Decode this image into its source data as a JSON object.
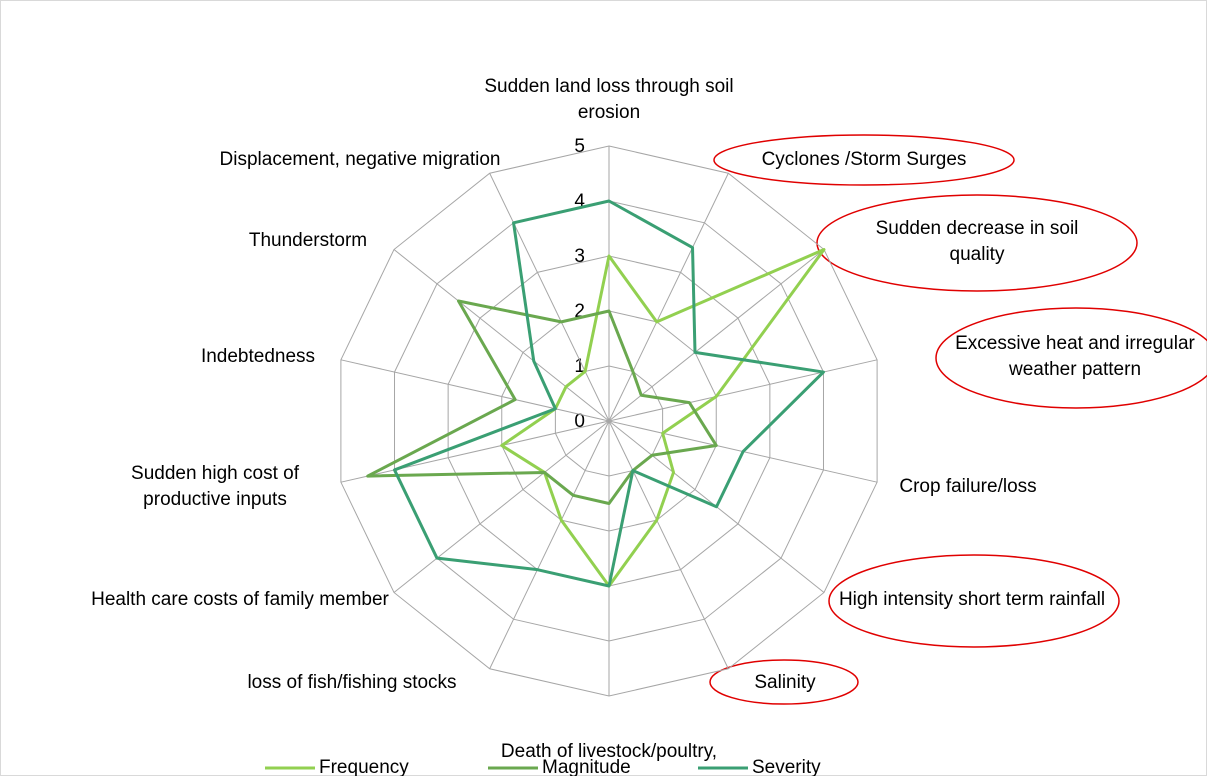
{
  "chart_data": {
    "type": "radar",
    "categories": [
      "Sudden land loss through soil erosion",
      "Cyclones /Storm Surges",
      "Sudden decrease in soil quality",
      "Excessive heat and irregular weather pattern",
      "Crop failure/loss",
      "High intensity short term rainfall",
      "Salinity",
      "Death of livestock/poultry,",
      "loss of fish/fishing stocks",
      "Health care costs of family member",
      "Sudden high cost of productive inputs",
      "Indebtedness",
      "Thunderstorm",
      "Displacement, negative migration"
    ],
    "series": [
      {
        "name": "Frequency",
        "color": "#92d050",
        "values": [
          3,
          2,
          5,
          2,
          1,
          1.5,
          2,
          3,
          2,
          1.5,
          2,
          1,
          1,
          1
        ]
      },
      {
        "name": "Magnitude",
        "color": "#6aa84f",
        "values": [
          2,
          1,
          0.75,
          1.5,
          2,
          1,
          1,
          1.5,
          1.5,
          1.5,
          4.5,
          1.75,
          3.5,
          2
        ]
      },
      {
        "name": "Severity",
        "color": "#3a9f73",
        "values": [
          4,
          3.5,
          2,
          4,
          2.5,
          2.5,
          1,
          3,
          3,
          4,
          4,
          1,
          1.75,
          4
        ]
      }
    ],
    "ylim": [
      0,
      5
    ],
    "yticks": [
      0,
      1,
      2,
      3,
      4,
      5
    ],
    "grid": true,
    "legend": "bottom"
  }
}
